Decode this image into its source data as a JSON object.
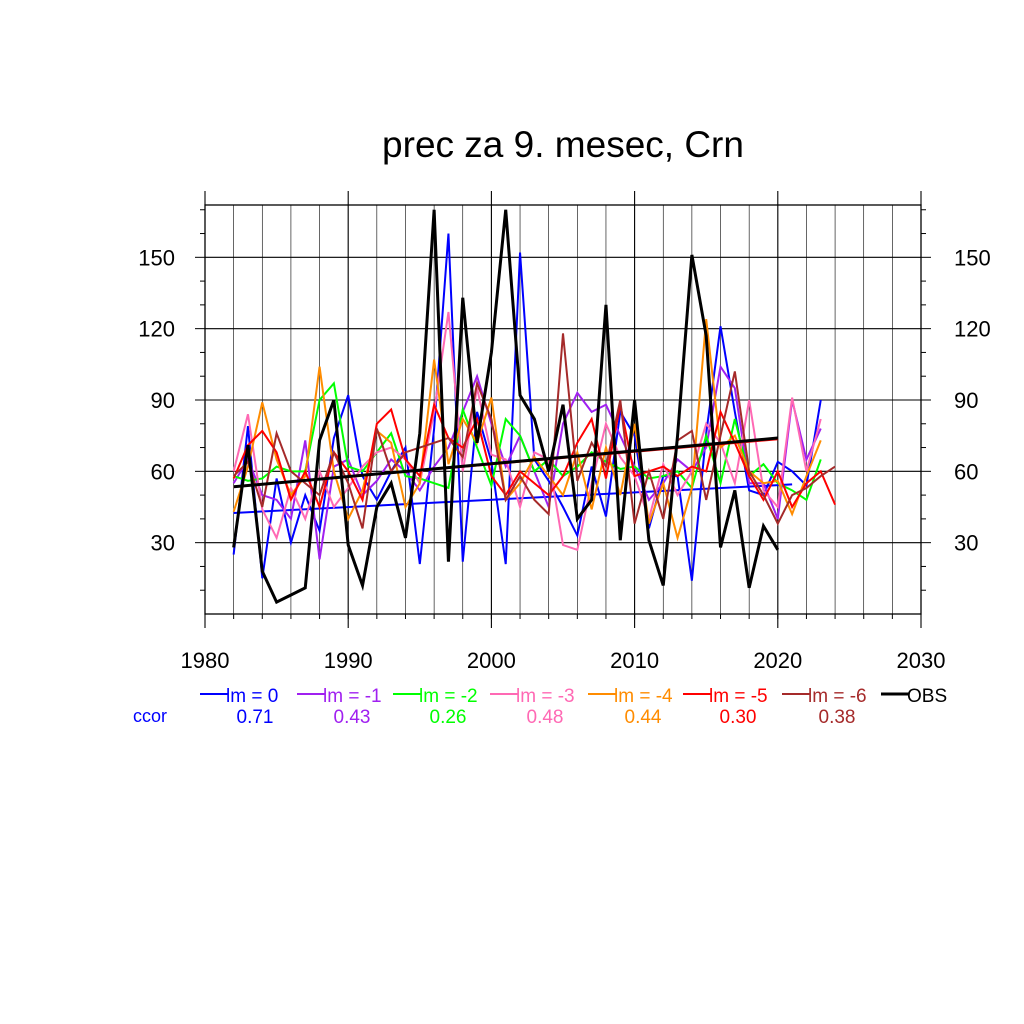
{
  "chart_data": {
    "type": "line",
    "title": "prec za 9. mesec, Crn",
    "xlabel": "",
    "ylabel": "",
    "xlim": [
      1980,
      2030
    ],
    "ylim": [
      0,
      172
    ],
    "xticks": [
      1980,
      1990,
      2000,
      2010,
      2020,
      2030
    ],
    "yticks": [
      30,
      60,
      90,
      120,
      150
    ],
    "grid": true,
    "legend_position": "bottom",
    "ccor_label": "ccor",
    "series": [
      {
        "name": "lm = 0",
        "color": "#0000ff",
        "ccor": "0.71",
        "x_start": 1982,
        "values": [
          25,
          79,
          15,
          57,
          30,
          50,
          35,
          74,
          92,
          58,
          48,
          60,
          70,
          21,
          78,
          160,
          22,
          85,
          64,
          21,
          152,
          65,
          56,
          45,
          33,
          62,
          41,
          85,
          75,
          36,
          58,
          58,
          14,
          76,
          121,
          85,
          52,
          50,
          64,
          60,
          54,
          90
        ],
        "trend": {
          "x": [
            1982,
            2021
          ],
          "y": [
            42.5,
            54.5
          ]
        }
      },
      {
        "name": "lm = -1",
        "color": "#a020f0",
        "ccor": "0.43",
        "x_start": 1982,
        "values": [
          55,
          65,
          50,
          48,
          40,
          73,
          23,
          62,
          65,
          50,
          56,
          65,
          60,
          52,
          62,
          70,
          85,
          100,
          80,
          62,
          75,
          60,
          45,
          80,
          93,
          85,
          88,
          75,
          62,
          48,
          55,
          65,
          60,
          70,
          104,
          95,
          55,
          55,
          40,
          90,
          65,
          78
        ],
        "trend": null
      },
      {
        "name": "lm = -2",
        "color": "#00ff00",
        "ccor": "0.26",
        "x_start": 1982,
        "values": [
          58,
          56,
          57,
          62,
          60,
          60,
          90,
          97,
          62,
          60,
          68,
          76,
          58,
          57,
          55,
          53,
          86,
          70,
          54,
          82,
          75,
          60,
          65,
          58,
          62,
          68,
          64,
          61,
          62,
          57,
          58,
          60,
          53,
          75,
          55,
          82,
          58,
          63,
          55,
          52,
          48,
          65
        ],
        "trend": null
      },
      {
        "name": "lm = -3",
        "color": "#ff69b4",
        "ccor": "0.48",
        "x_start": 1982,
        "values": [
          60,
          84,
          44,
          32,
          53,
          40,
          60,
          45,
          53,
          62,
          68,
          70,
          65,
          55,
          85,
          127,
          60,
          95,
          67,
          65,
          45,
          68,
          65,
          29,
          27,
          55,
          80,
          66,
          58,
          40,
          63,
          50,
          60,
          80,
          72,
          55,
          90,
          52,
          45,
          91,
          60,
          82
        ],
        "trend": null
      },
      {
        "name": "lm = -4",
        "color": "#ff8c00",
        "ccor": "0.44",
        "x_start": 1982,
        "values": [
          43,
          62,
          89,
          65,
          50,
          58,
          104,
          60,
          40,
          52,
          77,
          72,
          45,
          55,
          107,
          63,
          82,
          72,
          91,
          48,
          55,
          66,
          58,
          50,
          68,
          44,
          70,
          50,
          80,
          38,
          55,
          32,
          53,
          124,
          70,
          75,
          60,
          55,
          56,
          42,
          58,
          73
        ],
        "trend": null
      },
      {
        "name": "lm = -5",
        "color": "#ff0000",
        "ccor": "0.30",
        "x_start": 1982,
        "values": [
          57,
          71,
          77,
          68,
          48,
          60,
          45,
          68,
          60,
          48,
          80,
          86,
          65,
          58,
          88,
          74,
          70,
          82,
          58,
          50,
          60,
          55,
          50,
          58,
          72,
          82,
          57,
          88,
          58,
          60,
          62,
          58,
          62,
          60,
          85,
          72,
          58,
          48,
          60,
          45,
          55,
          60,
          46
        ],
        "trend": {
          "x": [
            1982,
            2020
          ],
          "y": [
            53.5,
            73.5
          ]
        }
      },
      {
        "name": "lm = -6",
        "color": "#a52a2a",
        "ccor": "0.38",
        "x_start": 1982,
        "values": [
          58,
          64,
          45,
          76,
          60,
          55,
          50,
          68,
          55,
          36,
          78,
          60,
          68,
          70,
          72,
          74,
          66,
          97,
          82,
          48,
          58,
          48,
          42,
          118,
          56,
          72,
          62,
          90,
          38,
          60,
          40,
          73,
          77,
          48,
          75,
          102,
          60,
          50,
          38,
          50,
          53,
          58,
          62
        ],
        "trend": null
      },
      {
        "name": "OBS",
        "color": "#000000",
        "ccor": "",
        "x_start": 1982,
        "values": [
          28,
          71,
          18,
          5,
          8,
          11,
          73,
          90,
          29,
          12,
          45,
          55,
          32,
          76,
          170,
          22,
          133,
          72,
          110,
          170,
          92,
          82,
          60,
          88,
          40,
          48,
          130,
          31,
          90,
          31,
          12,
          75,
          151,
          117,
          28,
          52,
          11,
          37,
          27
        ],
        "trend": {
          "x": [
            1982,
            2020
          ],
          "y": [
            53.5,
            74
          ]
        }
      }
    ]
  }
}
